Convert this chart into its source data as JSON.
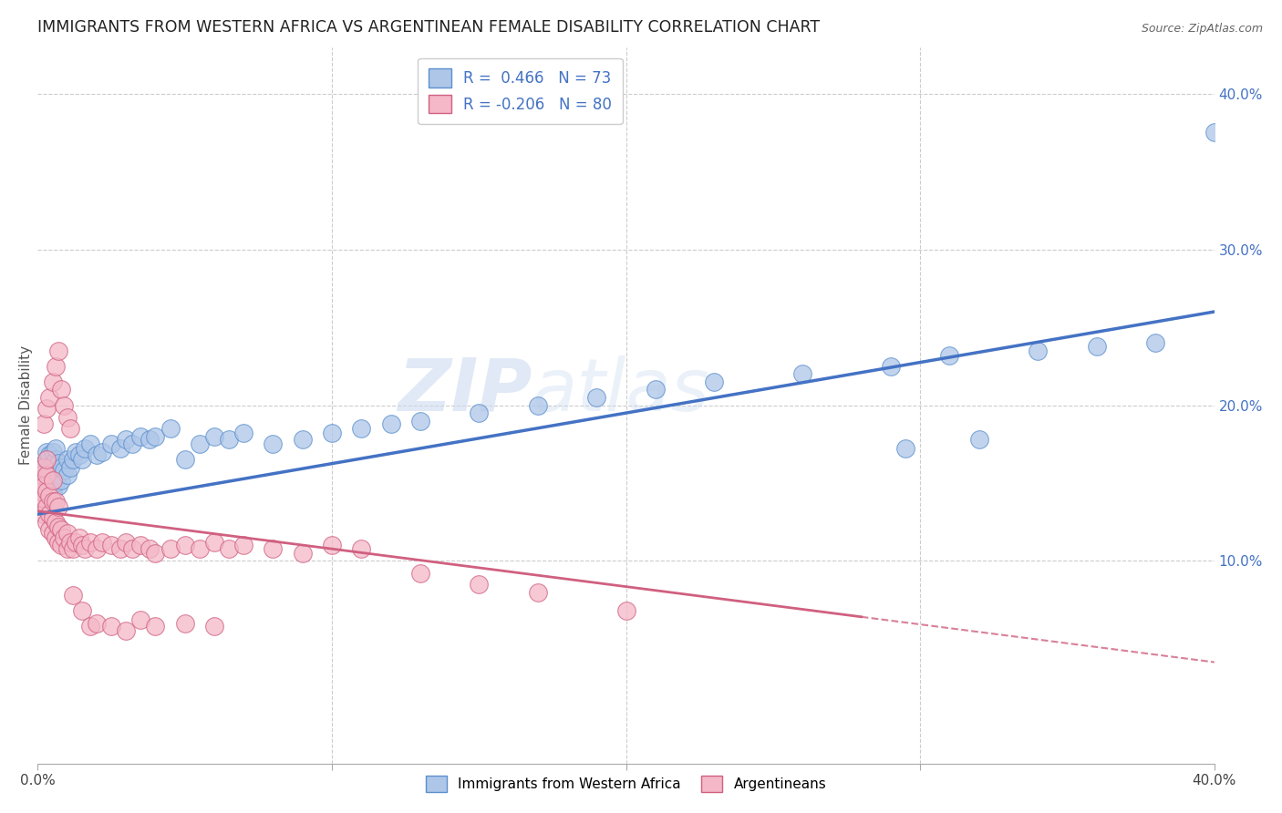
{
  "title": "IMMIGRANTS FROM WESTERN AFRICA VS ARGENTINEAN FEMALE DISABILITY CORRELATION CHART",
  "source": "Source: ZipAtlas.com",
  "ylabel": "Female Disability",
  "xlim": [
    0.0,
    0.4
  ],
  "ylim": [
    -0.03,
    0.43
  ],
  "blue_R": 0.466,
  "blue_N": 73,
  "pink_R": -0.206,
  "pink_N": 80,
  "blue_color": "#aec6e8",
  "blue_edge_color": "#5b8fce",
  "blue_line_color": "#4472c4",
  "pink_color": "#f4b8c8",
  "pink_edge_color": "#d06080",
  "pink_line_color": "#d06080",
  "watermark_zip": "ZIP",
  "watermark_atlas": "atlas",
  "blue_scatter_x": [
    0.001,
    0.001,
    0.001,
    0.002,
    0.002,
    0.002,
    0.002,
    0.003,
    0.003,
    0.003,
    0.003,
    0.003,
    0.004,
    0.004,
    0.004,
    0.005,
    0.005,
    0.005,
    0.005,
    0.006,
    0.006,
    0.006,
    0.006,
    0.007,
    0.007,
    0.007,
    0.008,
    0.008,
    0.009,
    0.01,
    0.01,
    0.011,
    0.012,
    0.013,
    0.014,
    0.015,
    0.016,
    0.018,
    0.02,
    0.022,
    0.025,
    0.028,
    0.03,
    0.032,
    0.035,
    0.038,
    0.04,
    0.045,
    0.05,
    0.055,
    0.06,
    0.065,
    0.07,
    0.08,
    0.09,
    0.1,
    0.11,
    0.12,
    0.13,
    0.15,
    0.17,
    0.19,
    0.21,
    0.23,
    0.26,
    0.29,
    0.31,
    0.34,
    0.36,
    0.38,
    0.295,
    0.32,
    0.4
  ],
  "blue_scatter_y": [
    0.145,
    0.15,
    0.155,
    0.148,
    0.152,
    0.158,
    0.162,
    0.145,
    0.15,
    0.158,
    0.165,
    0.17,
    0.152,
    0.16,
    0.168,
    0.145,
    0.155,
    0.162,
    0.17,
    0.15,
    0.158,
    0.165,
    0.172,
    0.148,
    0.155,
    0.163,
    0.152,
    0.16,
    0.158,
    0.155,
    0.165,
    0.16,
    0.165,
    0.17,
    0.168,
    0.165,
    0.172,
    0.175,
    0.168,
    0.17,
    0.175,
    0.172,
    0.178,
    0.175,
    0.18,
    0.178,
    0.18,
    0.185,
    0.165,
    0.175,
    0.18,
    0.178,
    0.182,
    0.175,
    0.178,
    0.182,
    0.185,
    0.188,
    0.19,
    0.195,
    0.2,
    0.205,
    0.21,
    0.215,
    0.22,
    0.225,
    0.232,
    0.235,
    0.238,
    0.24,
    0.172,
    0.178,
    0.375
  ],
  "pink_scatter_x": [
    0.001,
    0.001,
    0.001,
    0.002,
    0.002,
    0.002,
    0.002,
    0.003,
    0.003,
    0.003,
    0.003,
    0.003,
    0.004,
    0.004,
    0.004,
    0.005,
    0.005,
    0.005,
    0.005,
    0.006,
    0.006,
    0.006,
    0.007,
    0.007,
    0.007,
    0.008,
    0.008,
    0.009,
    0.01,
    0.01,
    0.011,
    0.012,
    0.013,
    0.014,
    0.015,
    0.016,
    0.018,
    0.02,
    0.022,
    0.025,
    0.028,
    0.03,
    0.032,
    0.035,
    0.038,
    0.04,
    0.045,
    0.05,
    0.055,
    0.06,
    0.065,
    0.07,
    0.08,
    0.09,
    0.1,
    0.11,
    0.13,
    0.15,
    0.17,
    0.2,
    0.002,
    0.003,
    0.004,
    0.005,
    0.006,
    0.007,
    0.008,
    0.009,
    0.01,
    0.011,
    0.012,
    0.015,
    0.018,
    0.02,
    0.025,
    0.03,
    0.035,
    0.04,
    0.05,
    0.06
  ],
  "pink_scatter_y": [
    0.14,
    0.145,
    0.155,
    0.13,
    0.14,
    0.148,
    0.16,
    0.125,
    0.135,
    0.145,
    0.155,
    0.165,
    0.12,
    0.13,
    0.142,
    0.118,
    0.128,
    0.138,
    0.152,
    0.115,
    0.125,
    0.138,
    0.112,
    0.122,
    0.135,
    0.11,
    0.12,
    0.115,
    0.108,
    0.118,
    0.112,
    0.108,
    0.112,
    0.115,
    0.11,
    0.108,
    0.112,
    0.108,
    0.112,
    0.11,
    0.108,
    0.112,
    0.108,
    0.11,
    0.108,
    0.105,
    0.108,
    0.11,
    0.108,
    0.112,
    0.108,
    0.11,
    0.108,
    0.105,
    0.11,
    0.108,
    0.092,
    0.085,
    0.08,
    0.068,
    0.188,
    0.198,
    0.205,
    0.215,
    0.225,
    0.235,
    0.21,
    0.2,
    0.192,
    0.185,
    0.078,
    0.068,
    0.058,
    0.06,
    0.058,
    0.055,
    0.062,
    0.058,
    0.06,
    0.058
  ],
  "pink_line_end_x": 0.28,
  "blue_line_start_y": 0.13,
  "blue_line_end_y": 0.26,
  "pink_line_start_y": 0.132,
  "pink_line_end_y": 0.07
}
